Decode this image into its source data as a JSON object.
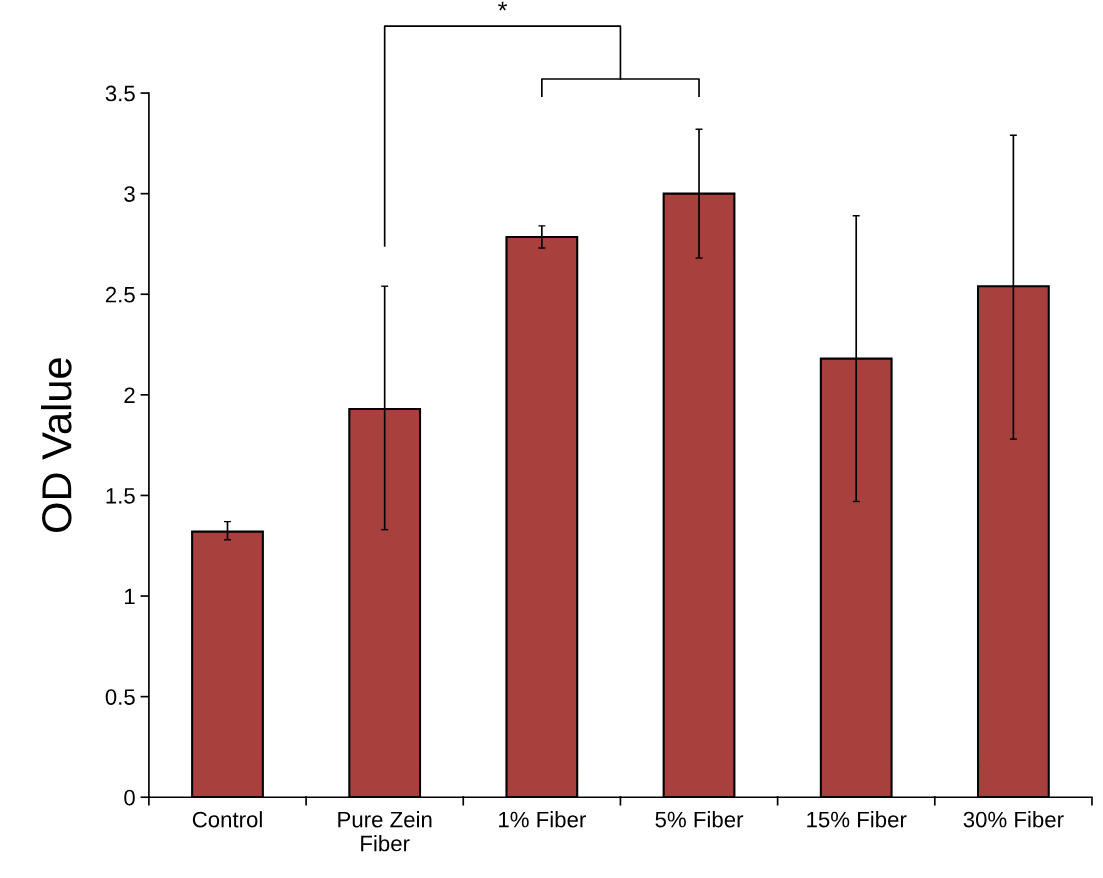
{
  "chart_data": {
    "type": "bar",
    "ylabel": "OD Value",
    "categories": [
      "Control",
      "Pure Zein\nFiber",
      "1% Fiber",
      "5% Fiber",
      "15% Fiber",
      "30% Fiber"
    ],
    "values": [
      1.32,
      1.93,
      2.785,
      3.0,
      2.18,
      2.54
    ],
    "errors": [
      [
        1.28,
        1.37
      ],
      [
        1.33,
        2.54
      ],
      [
        2.73,
        2.84
      ],
      [
        2.68,
        3.32
      ],
      [
        1.47,
        2.89
      ],
      [
        1.78,
        3.29
      ]
    ],
    "color": "#a8403d",
    "ylim": [
      0,
      3.5
    ],
    "yticks": [
      0,
      0.5,
      1,
      1.5,
      2,
      2.5,
      3,
      3.5
    ],
    "grid": false,
    "annotations": [
      "*"
    ]
  }
}
